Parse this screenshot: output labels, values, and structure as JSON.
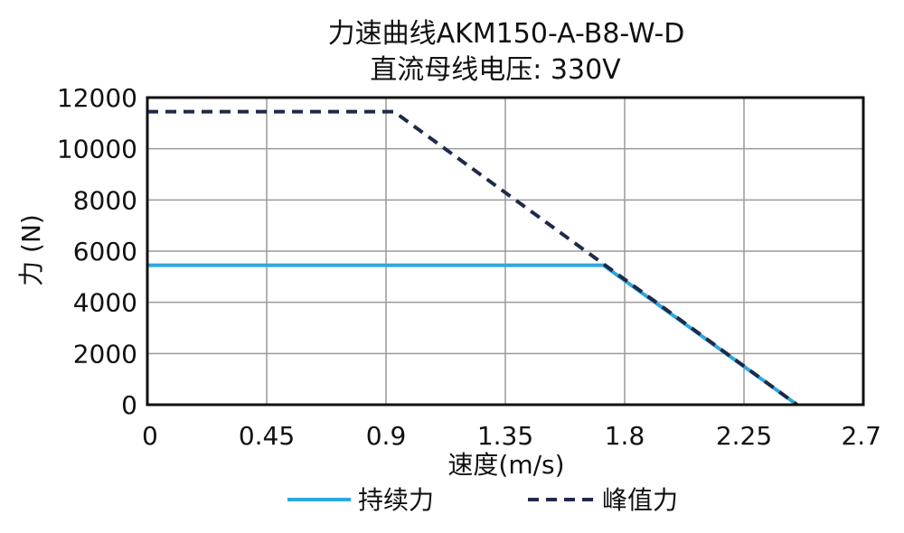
{
  "chart_data": {
    "type": "line",
    "title": [
      "力速曲线AKM150-A-B8-W-D",
      "直流母线电压: 330V"
    ],
    "xlabel": "速度(m/s)",
    "ylabel": "力 (N)",
    "xlim": [
      0,
      2.7
    ],
    "ylim": [
      0,
      12000
    ],
    "xticks": [
      "0",
      "0.45",
      "0.9",
      "1.35",
      "1.8",
      "2.25",
      "2.7"
    ],
    "yticks": [
      "0",
      "2000",
      "4000",
      "6000",
      "8000",
      "10000",
      "12000"
    ],
    "grid": true,
    "legend_position": "bottom",
    "series": [
      {
        "name": "持续力",
        "color": "#2ea7dd",
        "style": "solid",
        "x": [
          0,
          1.72,
          2.45
        ],
        "y": [
          5450,
          5450,
          0
        ]
      },
      {
        "name": "峰值力",
        "color": "#1e2a4a",
        "style": "dashed",
        "x": [
          0,
          0.93,
          2.45
        ],
        "y": [
          11450,
          11450,
          0
        ]
      }
    ]
  }
}
